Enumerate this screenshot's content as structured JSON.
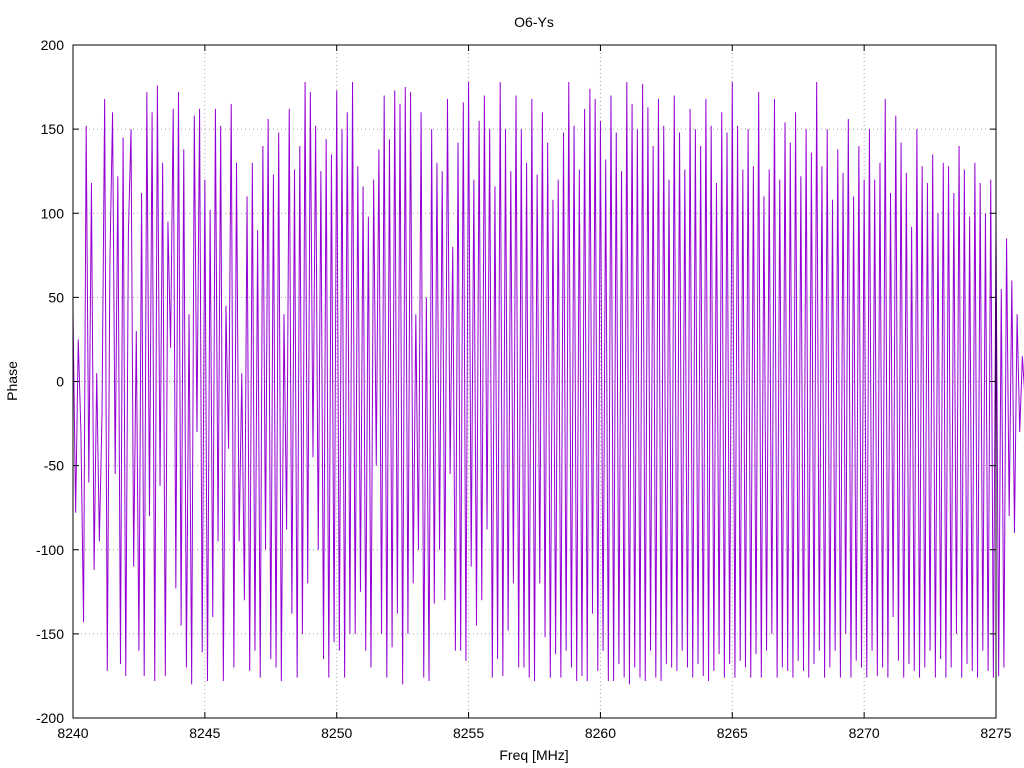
{
  "chart_data": {
    "type": "line",
    "title": "O6-Ys",
    "xlabel": "Freq [MHz]",
    "ylabel": "Phase",
    "xlim": [
      8240,
      8275
    ],
    "ylim": [
      -200,
      200
    ],
    "x_ticks": [
      8240,
      8245,
      8250,
      8255,
      8260,
      8265,
      8270,
      8275
    ],
    "y_ticks": [
      -200,
      -150,
      -100,
      -50,
      0,
      50,
      100,
      150,
      200
    ],
    "x_tick_labels": [
      "8240",
      "8245",
      "8250",
      "8255",
      "8260",
      "8265",
      "8270",
      "8275"
    ],
    "y_tick_labels": [
      "-200",
      "-150",
      "-100",
      "-50",
      "0",
      "50",
      "100",
      "150",
      "200"
    ],
    "grid": true,
    "series": [
      {
        "color": "#9400d3",
        "x_start": 8240,
        "x_step": 0.1,
        "values": [
          42,
          -78,
          25,
          -30,
          -143,
          152,
          -60,
          118,
          -112,
          5,
          -95,
          -20,
          168,
          -172,
          72,
          160,
          -55,
          122,
          -168,
          145,
          -175,
          88,
          150,
          -110,
          30,
          -160,
          112,
          -175,
          172,
          -80,
          160,
          -178,
          176,
          -62,
          130,
          -175,
          95,
          20,
          162,
          -123,
          172,
          -145,
          138,
          -170,
          40,
          -180,
          158,
          -30,
          162,
          -161,
          120,
          -178,
          102,
          -140,
          162,
          -95,
          152,
          -178,
          45,
          -40,
          165,
          -170,
          130,
          -95,
          5,
          -130,
          110,
          -172,
          130,
          -160,
          90,
          -176,
          140,
          -100,
          156,
          -165,
          123,
          -170,
          148,
          -178,
          40,
          -88,
          162,
          -138,
          126,
          -176,
          140,
          -150,
          178,
          -120,
          172,
          -45,
          152,
          -100,
          125,
          -165,
          144,
          -176,
          135,
          -155,
          173,
          -160,
          150,
          -176,
          160,
          -150,
          178,
          -150,
          128,
          -125,
          116,
          -160,
          98,
          -170,
          120,
          -50,
          138,
          -150,
          170,
          -176,
          144,
          -158,
          173,
          -138,
          165,
          -180,
          175,
          -150,
          172,
          -120,
          40,
          -100,
          160,
          -176,
          50,
          -178,
          150,
          -132,
          130,
          -100,
          125,
          -130,
          168,
          -55,
          80,
          -160,
          142,
          -160,
          166,
          -166,
          178,
          -110,
          120,
          -145,
          155,
          -130,
          170,
          -88,
          150,
          -176,
          116,
          -165,
          178,
          -175,
          150,
          -148,
          125,
          -120,
          170,
          -170,
          150,
          -170,
          130,
          -176,
          168,
          -178,
          123,
          -120,
          160,
          -152,
          142,
          -176,
          108,
          -162,
          120,
          -176,
          148,
          -160,
          178,
          -170,
          152,
          -178,
          126,
          -175,
          162,
          -178,
          174,
          -138,
          168,
          -172,
          155,
          -160,
          132,
          -178,
          170,
          -178,
          148,
          -168,
          125,
          -176,
          178,
          -180,
          165,
          -170,
          150,
          -176,
          177,
          -178,
          163,
          -160,
          140,
          -176,
          168,
          -178,
          152,
          -168,
          120,
          -170,
          170,
          -172,
          148,
          -160,
          126,
          -170,
          162,
          -176,
          150,
          -168,
          140,
          -175,
          168,
          -178,
          152,
          -172,
          118,
          -162,
          160,
          -176,
          148,
          -168,
          178,
          -176,
          152,
          -166,
          126,
          -170,
          150,
          -176,
          128,
          -162,
          172,
          -176,
          110,
          -160,
          126,
          -150,
          168,
          -176,
          120,
          -170,
          154,
          -172,
          142,
          -176,
          160,
          -166,
          122,
          -172,
          150,
          -176,
          136,
          -168,
          178,
          -160,
          128,
          -176,
          150,
          -170,
          108,
          -160,
          138,
          -176,
          124,
          -150,
          156,
          -176,
          110,
          -166,
          140,
          -170,
          120,
          -176,
          150,
          -160,
          120,
          -175,
          130,
          -170,
          168,
          -176,
          112,
          -140,
          158,
          -166,
          142,
          -176,
          124,
          -168,
          92,
          -172,
          150,
          -176,
          128,
          -170,
          118,
          -160,
          135,
          -176,
          100,
          -165,
          130,
          -176,
          128,
          -170,
          112,
          -150,
          140,
          -176,
          126,
          -168,
          98,
          -172,
          130,
          -176,
          118,
          -160,
          100,
          -172,
          120,
          -176,
          92,
          -175,
          55,
          -170,
          85,
          -80,
          60,
          -90,
          40,
          -30,
          15,
          -10,
          0
        ]
      }
    ]
  }
}
